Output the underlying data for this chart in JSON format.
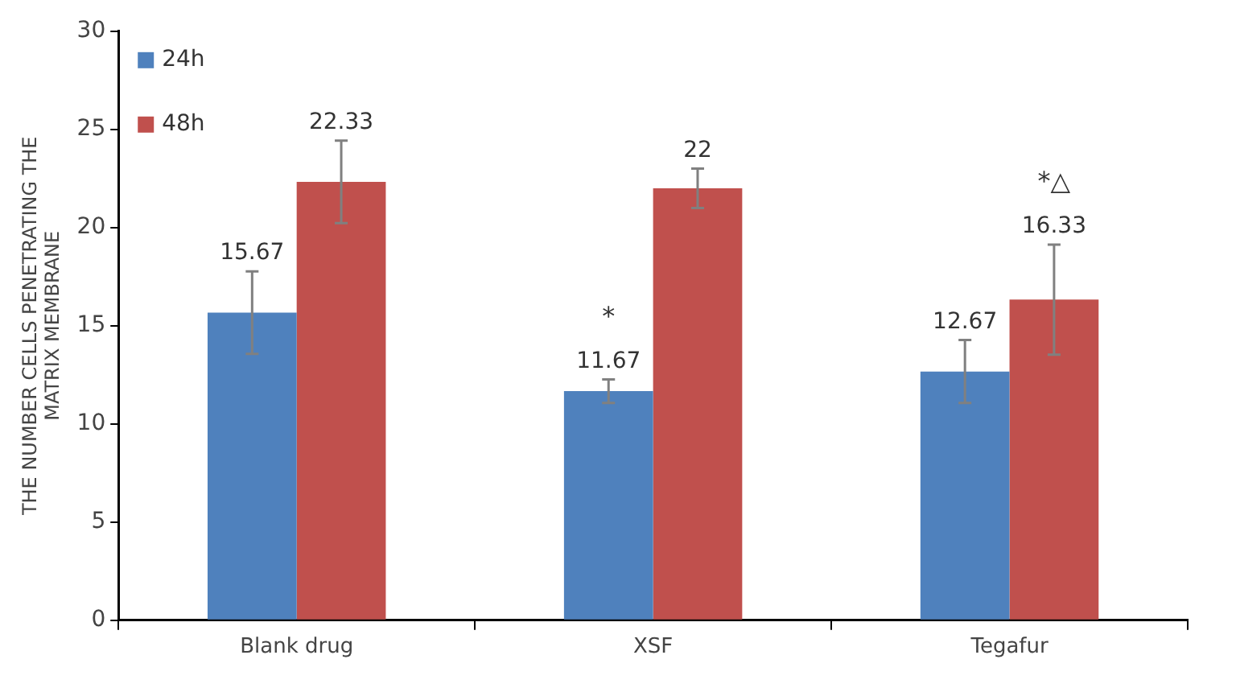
{
  "chart_data": {
    "type": "bar",
    "ylabel": "THE NUMBER CELLS PENETRATING THE MATRIX MEMBRANE",
    "categories": [
      "Blank drug",
      "XSF",
      "Tegafur"
    ],
    "series": [
      {
        "name": "24h",
        "color": "#4f81bd",
        "values": [
          15.67,
          11.67,
          12.67
        ],
        "errors": [
          2.1,
          0.6,
          1.6
        ]
      },
      {
        "name": "48h",
        "color": "#c0504d",
        "values": [
          22.33,
          22,
          16.33
        ],
        "errors": [
          2.1,
          1,
          2.8
        ]
      }
    ],
    "ylim": [
      0,
      30
    ],
    "yticks": [
      0,
      5,
      10,
      15,
      20,
      25,
      30
    ],
    "legend": "top left",
    "data_labels": true,
    "annotations": [
      "*",
      "*△"
    ]
  }
}
